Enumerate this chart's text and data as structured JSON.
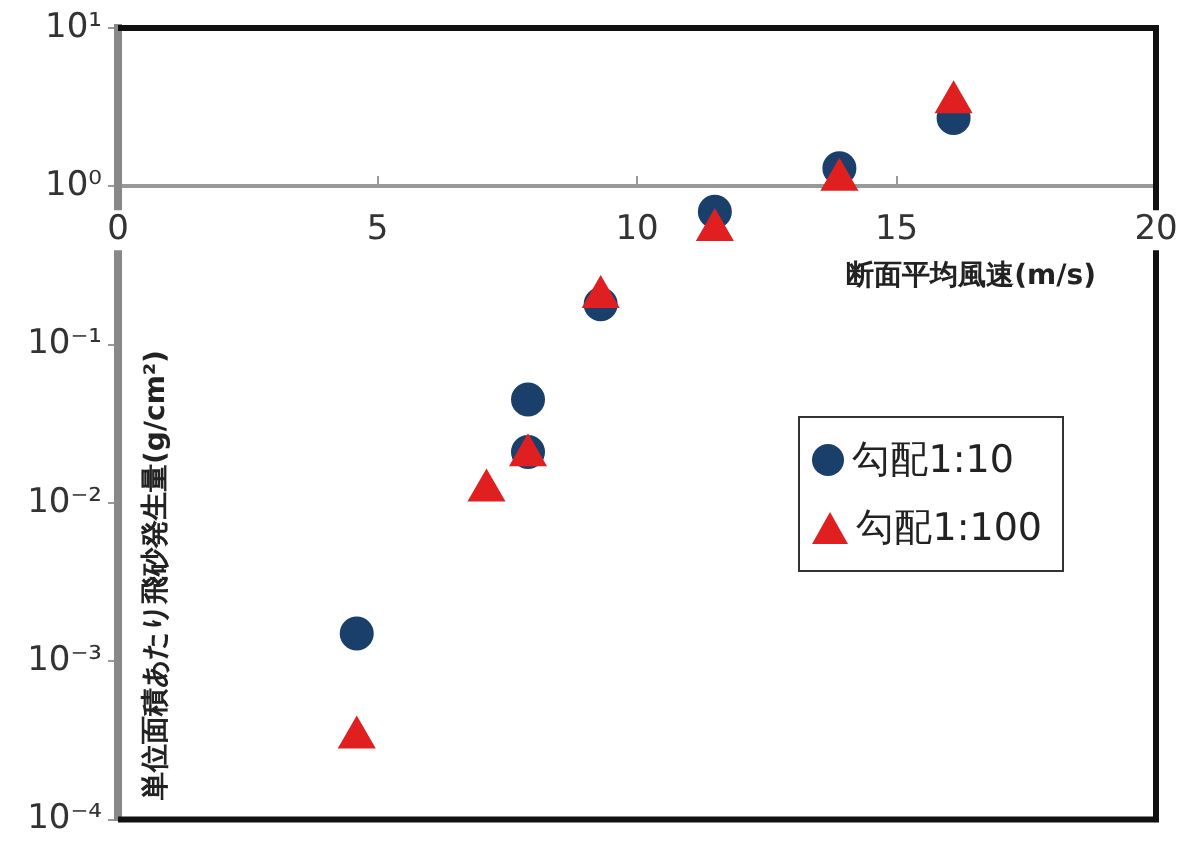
{
  "chart_data": {
    "type": "scatter",
    "xlabel": "断面平均風速(m/s)",
    "ylabel": "単位面積あたり飛砂発生量(g/cm²)",
    "log": "y",
    "xlim": [
      0,
      20
    ],
    "xticks": [
      0,
      5,
      10,
      15,
      20
    ],
    "ylim": [
      0.0001,
      10
    ],
    "yticks": [
      {
        "value": 0.0001,
        "label": "10⁻⁴"
      },
      {
        "value": 0.001,
        "label": "10⁻³"
      },
      {
        "value": 0.01,
        "label": "10⁻²"
      },
      {
        "value": 0.1,
        "label": "10⁻¹"
      },
      {
        "value": 1,
        "label": "10⁰"
      },
      {
        "value": 10,
        "label": "10¹"
      }
    ],
    "grid": false,
    "legend": "right",
    "series": [
      {
        "name": "勾配1:10",
        "color": "#1b3f6b",
        "marker": "circle",
        "x": [
          4.6,
          7.9,
          7.9,
          9.3,
          11.5,
          13.9,
          16.1
        ],
        "values": [
          0.0015,
          0.045,
          0.021,
          0.18,
          0.69,
          1.3,
          2.7
        ]
      },
      {
        "name": "勾配1:100",
        "color": "#e02020",
        "marker": "triangle",
        "x": [
          4.6,
          7.1,
          7.9,
          9.3,
          11.5,
          13.9,
          16.1
        ],
        "values": [
          0.00033,
          0.012,
          0.02,
          0.2,
          0.53,
          1.1,
          3.4
        ]
      }
    ]
  }
}
